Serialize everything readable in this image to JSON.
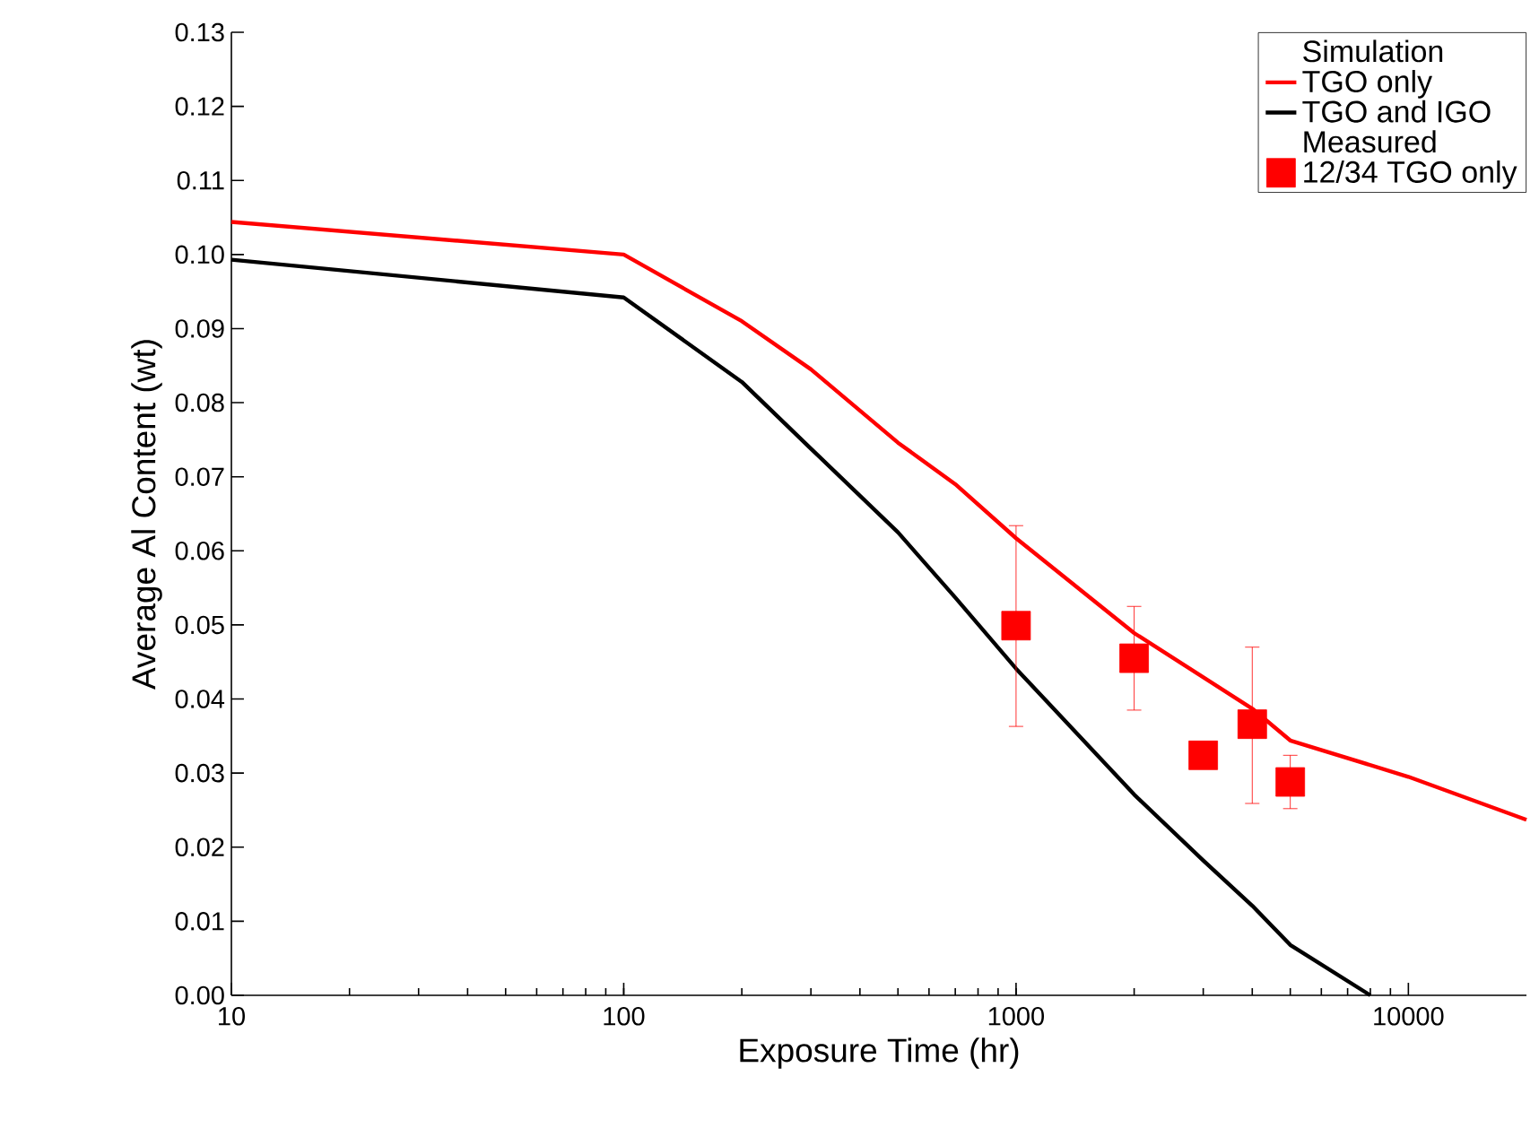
{
  "chart_data": {
    "type": "line",
    "xlabel": "Exposure Time (hr)",
    "ylabel": "Average Al Content (wt)",
    "log": "x",
    "xlim": [
      10,
      20000
    ],
    "xticks": [
      10,
      100,
      1000,
      10000
    ],
    "ylim": [
      0,
      0.13
    ],
    "yticks": [
      {
        "value": 0,
        "label": "0.00"
      },
      {
        "value": 0.01,
        "label": "0.01"
      },
      {
        "value": 0.02,
        "label": "0.02"
      },
      {
        "value": 0.03,
        "label": "0.03"
      },
      {
        "value": 0.04,
        "label": "0.04"
      },
      {
        "value": 0.05,
        "label": "0.05"
      },
      {
        "value": 0.06,
        "label": "0.06"
      },
      {
        "value": 0.07,
        "label": "0.07"
      },
      {
        "value": 0.08,
        "label": "0.08"
      },
      {
        "value": 0.09,
        "label": "0.09"
      },
      {
        "value": 0.1,
        "label": "0.10"
      },
      {
        "value": 0.11,
        "label": "0.11"
      },
      {
        "value": 0.12,
        "label": "0.12"
      },
      {
        "value": 0.13,
        "label": "0.13"
      }
    ],
    "legend": "top right",
    "grid": false,
    "annotations": [
      "Simulation",
      "Measured"
    ],
    "series": [
      {
        "name": "TGO only",
        "color": "#ff0000",
        "x": [
          10,
          100,
          200,
          300,
          500,
          700,
          1000,
          2000,
          4000,
          5000,
          10000,
          20000
        ],
        "values": [
          0.1044,
          0.1,
          0.091,
          0.0845,
          0.0746,
          0.069,
          0.0617,
          0.0489,
          0.0387,
          0.0344,
          0.0295,
          0.0237
        ]
      },
      {
        "name": "TGO and IGO",
        "color": "#000000",
        "x": [
          10,
          100,
          200,
          300,
          500,
          700,
          1000,
          2000,
          3000,
          4000,
          5000,
          8000
        ],
        "values": [
          0.0993,
          0.0942,
          0.0828,
          0.0738,
          0.0625,
          0.0537,
          0.0441,
          0.0271,
          0.0182,
          0.0121,
          0.0068,
          0
        ]
      },
      {
        "name": "12/34 TGO only",
        "type": "scatter",
        "marker": "square",
        "color": "#ff0000",
        "x": [
          1000,
          2000,
          3000,
          4000,
          5000
        ],
        "values": [
          0.0499,
          0.0455,
          0.0324,
          0.0366,
          0.0288
        ],
        "errors": [
          [
            0.0363,
            0.0634
          ],
          [
            0.0385,
            0.0525
          ],
          null,
          [
            0.0259,
            0.047
          ],
          [
            0.0252,
            0.0324
          ]
        ]
      }
    ]
  }
}
